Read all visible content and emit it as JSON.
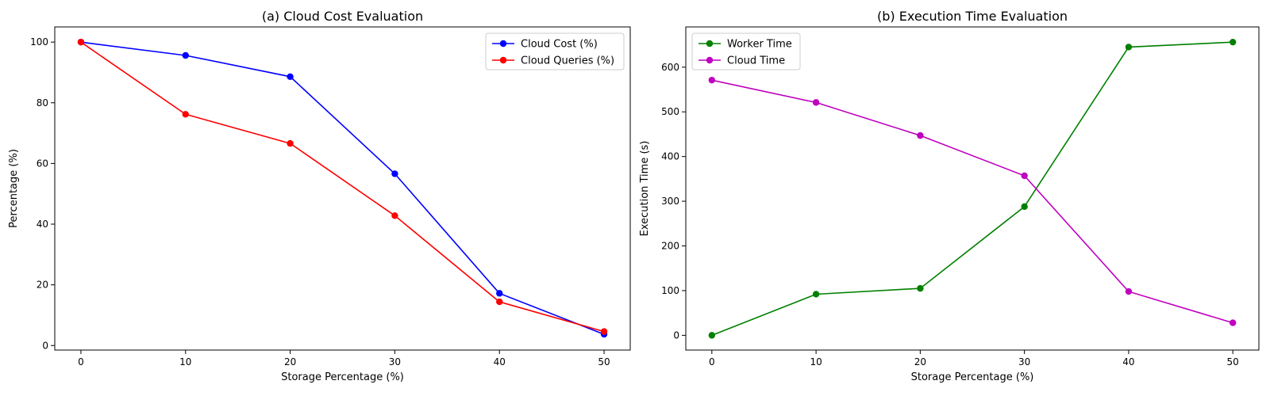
{
  "chart_data": [
    {
      "type": "line",
      "title": "(a) Cloud Cost Evaluation",
      "xlabel": "Storage Percentage (%)",
      "ylabel": "Percentage (%)",
      "x": [
        0,
        10,
        20,
        30,
        40,
        50
      ],
      "xlim": [
        -2.5,
        52.5
      ],
      "ylim": [
        -1.5,
        105
      ],
      "xticks": [
        0,
        10,
        20,
        30,
        40,
        50
      ],
      "yticks": [
        0,
        20,
        40,
        60,
        80,
        100
      ],
      "grid": false,
      "legend_position": "top-right",
      "series": [
        {
          "name": "Cloud Cost (%)",
          "color": "#0000ff",
          "values": [
            100,
            95.6,
            88.6,
            56.6,
            17.2,
            3.7
          ]
        },
        {
          "name": "Cloud Queries (%)",
          "color": "#ff0000",
          "values": [
            100,
            76.2,
            66.6,
            42.8,
            14.4,
            4.6
          ]
        }
      ]
    },
    {
      "type": "line",
      "title": "(b) Execution Time Evaluation",
      "xlabel": "Storage Percentage (%)",
      "ylabel": "Execution Time (s)",
      "x": [
        0,
        10,
        20,
        30,
        40,
        50
      ],
      "xlim": [
        -2.5,
        52.5
      ],
      "ylim": [
        -33,
        690
      ],
      "xticks": [
        0,
        10,
        20,
        30,
        40,
        50
      ],
      "yticks": [
        0,
        100,
        200,
        300,
        400,
        500,
        600
      ],
      "grid": false,
      "legend_position": "top-left",
      "series": [
        {
          "name": "Worker Time",
          "color": "#008000",
          "values": [
            0,
            92,
            105,
            288,
            645,
            656
          ]
        },
        {
          "name": "Cloud Time",
          "color": "#bf00bf",
          "values": [
            571,
            521,
            447,
            357,
            98,
            28
          ]
        }
      ]
    }
  ]
}
